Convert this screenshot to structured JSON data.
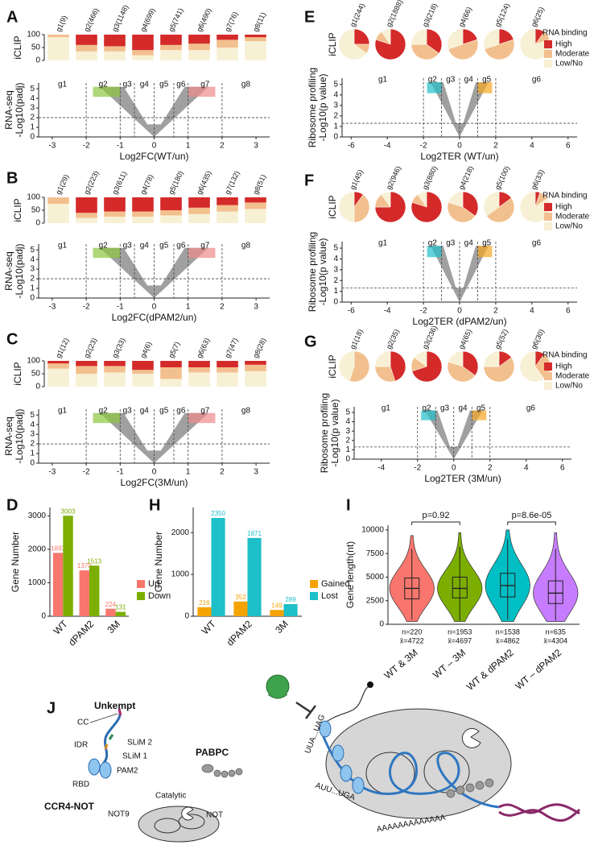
{
  "chart_data": [
    {
      "type": "stacked-bar",
      "panel": "A",
      "ylabel": "iCLIP",
      "categories": [
        "g1(9)",
        "g2(466)",
        "g3(1148)",
        "g4(699)",
        "g5(741)",
        "g6(490)",
        "g7(76)",
        "g8(11)"
      ],
      "series": [
        {
          "color": "#f7f0d4",
          "values": [
            90,
            35,
            35,
            20,
            40,
            40,
            50,
            75
          ]
        },
        {
          "color": "#f2c08e",
          "values": [
            10,
            25,
            20,
            20,
            20,
            25,
            30,
            15
          ]
        },
        {
          "color": "#d42a2a",
          "values": [
            0,
            40,
            45,
            60,
            40,
            35,
            20,
            10
          ]
        }
      ],
      "ylim": [
        0,
        100
      ],
      "yticks": [
        0,
        50,
        100
      ]
    },
    {
      "type": "volcano",
      "xlabel": "Log2FC(WT/un)",
      "ylabel": [
        "RNA-seq",
        "-Log10(padj)"
      ],
      "xlim": [
        -3.4,
        3.4
      ],
      "ylim": [
        0,
        5.6
      ],
      "xticks": [
        -3,
        -2,
        -1,
        0,
        1,
        2,
        3
      ],
      "yticks": [
        0,
        1,
        2,
        3,
        4,
        5
      ],
      "groups": [
        "g1",
        "g2",
        "g3",
        "g4",
        "g5",
        "g6",
        "g7",
        "g8"
      ],
      "x_thresholds": [
        -2,
        -1,
        -0.58,
        0,
        0.58,
        1,
        2
      ],
      "y_threshold": 2,
      "colors": [
        "#8cc63f",
        "#f08a8a"
      ]
    },
    {
      "type": "stacked-bar",
      "panel": "B",
      "ylabel": "iCLIP",
      "categories": [
        "g1(29)",
        "g2(223)",
        "g3(611)",
        "g4(78)",
        "g5(180)",
        "g6(435)",
        "g7(132)",
        "g8(51)"
      ],
      "series": [
        {
          "color": "#f7f0d4",
          "values": [
            75,
            20,
            25,
            25,
            30,
            35,
            45,
            55
          ]
        },
        {
          "color": "#f2c08e",
          "values": [
            25,
            20,
            20,
            20,
            20,
            25,
            25,
            25
          ]
        },
        {
          "color": "#d42a2a",
          "values": [
            0,
            60,
            55,
            55,
            50,
            40,
            30,
            20
          ]
        }
      ],
      "ylim": [
        0,
        100
      ],
      "yticks": [
        0,
        50,
        100
      ]
    },
    {
      "type": "volcano",
      "xlabel": "Log2FC(dPAM2/un)",
      "ylabel": [
        "RNA-seq",
        "-Log10(padj)"
      ],
      "xlim": [
        -3.4,
        3.4
      ],
      "ylim": [
        0,
        5.6
      ],
      "xticks": [
        -3,
        -2,
        -1,
        0,
        1,
        2,
        3
      ],
      "yticks": [
        0,
        1,
        2,
        3,
        4,
        5
      ],
      "groups": [
        "g1",
        "g2",
        "g3",
        "g4",
        "g5",
        "g6",
        "g7",
        "g8"
      ],
      "x_thresholds": [
        -2,
        -1,
        -0.58,
        0,
        0.58,
        1,
        2
      ],
      "y_threshold": 2,
      "colors": [
        "#8cc63f",
        "#f08a8a"
      ]
    },
    {
      "type": "stacked-bar",
      "panel": "C",
      "ylabel": "iCLIP",
      "categories": [
        "g1(12)",
        "g2(23)",
        "g3(33)",
        "g4(6)",
        "g5(7)",
        "g6(63)",
        "g7(47)",
        "g8(28)"
      ],
      "series": [
        {
          "color": "#f7f0d4",
          "values": [
            70,
            50,
            55,
            50,
            30,
            55,
            55,
            60
          ]
        },
        {
          "color": "#f2c08e",
          "values": [
            20,
            30,
            25,
            15,
            45,
            20,
            20,
            25
          ]
        },
        {
          "color": "#d42a2a",
          "values": [
            10,
            20,
            20,
            35,
            25,
            25,
            25,
            15
          ]
        }
      ],
      "ylim": [
        0,
        100
      ],
      "yticks": [
        0,
        50,
        100
      ]
    },
    {
      "type": "volcano",
      "xlabel": "Log2FC(3M/un)",
      "ylabel": [
        "RNA-seq",
        "-Log10(padj)"
      ],
      "xlim": [
        -3.4,
        3.4
      ],
      "ylim": [
        0,
        5.6
      ],
      "xticks": [
        -3,
        -2,
        -1,
        0,
        1,
        2,
        3
      ],
      "yticks": [
        0,
        1,
        2,
        3,
        4,
        5
      ],
      "groups": [
        "g1",
        "g2",
        "g3",
        "g4",
        "g5",
        "g6",
        "g7",
        "g8"
      ],
      "x_thresholds": [
        -2,
        -1,
        -0.58,
        0,
        0.58,
        1,
        2
      ],
      "y_threshold": 2,
      "colors": [
        "#8cc63f",
        "#f08a8a"
      ]
    },
    {
      "type": "pie",
      "panel": "E",
      "ylabel": "iCLIP",
      "legend_title": "RNA binding",
      "categories": [
        "g1(244)",
        "g2(1888)",
        "g3(218)",
        "g4(66)",
        "g5(124)",
        "g6(25)"
      ],
      "series": [
        {
          "name": "High",
          "color": "#d42a2a",
          "values": [
            25,
            80,
            35,
            20,
            20,
            10
          ]
        },
        {
          "name": "Moderate",
          "color": "#f2c08e",
          "values": [
            10,
            10,
            40,
            50,
            50,
            10
          ]
        },
        {
          "name": "Low/No",
          "color": "#f7f0d4",
          "values": [
            65,
            10,
            25,
            30,
            30,
            80
          ]
        }
      ]
    },
    {
      "type": "volcano",
      "xlabel": "Log2TER (WT/un)",
      "ylabel": [
        "Ribosome profiling",
        "-Log10(p value)"
      ],
      "xlim": [
        -6.5,
        6.5
      ],
      "ylim": [
        0,
        5.6
      ],
      "xticks": [
        -6,
        -4,
        -2,
        0,
        2,
        4,
        6
      ],
      "yticks": [
        0,
        1,
        2,
        3,
        4,
        5
      ],
      "groups": [
        "g1",
        "g2",
        "g3",
        "g4",
        "g5",
        "g6"
      ],
      "x_thresholds": [
        -2,
        -1,
        0,
        1,
        2
      ],
      "y_threshold": 1.3,
      "colors": [
        "#1fbfc7",
        "#f5a623"
      ]
    },
    {
      "type": "pie",
      "panel": "F",
      "ylabel": "iCLIP",
      "legend_title": "RNA binding",
      "categories": [
        "g1(45)",
        "g2(946)",
        "g3(880)",
        "g4(218)",
        "g5(100)",
        "g6(33)"
      ],
      "series": [
        {
          "name": "High",
          "color": "#d42a2a",
          "values": [
            10,
            75,
            80,
            35,
            15,
            5
          ]
        },
        {
          "name": "Moderate",
          "color": "#f2c08e",
          "values": [
            40,
            15,
            10,
            45,
            50,
            10
          ]
        },
        {
          "name": "Low/No",
          "color": "#f7f0d4",
          "values": [
            50,
            10,
            10,
            20,
            35,
            85
          ]
        }
      ]
    },
    {
      "type": "volcano",
      "xlabel": "Log2TER (dPAM2/un)",
      "ylabel": [
        "Ribosome profiling",
        "-Log10(p value)"
      ],
      "xlim": [
        -6.5,
        6.5
      ],
      "ylim": [
        0,
        5.6
      ],
      "xticks": [
        -6,
        -4,
        -2,
        0,
        2,
        4,
        6
      ],
      "yticks": [
        0,
        1,
        2,
        3,
        4,
        5
      ],
      "groups": [
        "g1",
        "g2",
        "g3",
        "g4",
        "g5",
        "g6"
      ],
      "x_thresholds": [
        -2,
        -1,
        0,
        1,
        2
      ],
      "y_threshold": 1.3,
      "colors": [
        "#1fbfc7",
        "#f5a623"
      ]
    },
    {
      "type": "pie",
      "panel": "G",
      "ylabel": "iCLIP",
      "legend_title": "RNA binding",
      "categories": [
        "g1(18)",
        "g2(35)",
        "g3(236)",
        "g4(65)",
        "g5(52)",
        "g6(30)"
      ],
      "series": [
        {
          "name": "High",
          "color": "#d42a2a",
          "values": [
            0,
            45,
            70,
            35,
            15,
            10
          ]
        },
        {
          "name": "Moderate",
          "color": "#f2c08e",
          "values": [
            55,
            30,
            15,
            45,
            60,
            30
          ]
        },
        {
          "name": "Low/No",
          "color": "#f7f0d4",
          "values": [
            45,
            25,
            15,
            20,
            25,
            60
          ]
        }
      ]
    },
    {
      "type": "volcano",
      "xlabel": "Log2TER (3M/un)",
      "ylabel": [
        "Ribosome profiling",
        "-Log10(p value)"
      ],
      "xlim": [
        -5.5,
        6.5
      ],
      "ylim": [
        0,
        5.6
      ],
      "xticks": [
        -4,
        -2,
        0,
        2,
        4,
        6
      ],
      "yticks": [
        0,
        1,
        2,
        3,
        4,
        5
      ],
      "groups": [
        "g1",
        "g2",
        "g3",
        "g4",
        "g5",
        "g6"
      ],
      "x_thresholds": [
        -2,
        -1,
        0,
        1,
        2
      ],
      "y_threshold": 1.3,
      "colors": [
        "#1fbfc7",
        "#f5a623"
      ]
    },
    {
      "type": "bar",
      "panel": "D",
      "ylabel": "Gene Number",
      "categories": [
        "WT",
        "dPAM2",
        "3M"
      ],
      "series": [
        {
          "name": "Up",
          "color": "#f8766d",
          "values": [
            1893,
            1370,
            224
          ]
        },
        {
          "name": "Down",
          "color": "#7cae00",
          "values": [
            3003,
            1513,
            131
          ]
        }
      ],
      "ylim": [
        0,
        3250
      ],
      "yticks": [
        0,
        1000,
        2000,
        3000
      ]
    },
    {
      "type": "bar",
      "panel": "H",
      "ylabel": "Gene Number",
      "categories": [
        "WT",
        "dPAM2",
        "3M"
      ],
      "series": [
        {
          "name": "Gained",
          "color": "#f5a300",
          "values": [
            216,
            352,
            149
          ]
        },
        {
          "name": "Lost",
          "color": "#1dbfc8",
          "values": [
            2350,
            1871,
            289
          ]
        }
      ],
      "ylim": [
        0,
        2600
      ],
      "yticks": [
        0,
        1000,
        2000
      ]
    },
    {
      "type": "violin",
      "panel": "I",
      "ylabel": "Gene length(nt)",
      "categories": [
        "WT & 3M",
        "WT – 3M",
        "WT & dPAM2",
        "WT – dPAM2"
      ],
      "colors": [
        "#f8766d",
        "#7cae00",
        "#00bfc4",
        "#c77cff"
      ],
      "stats": [
        {
          "min": 300,
          "low": 500,
          "q1": 2700,
          "median": 3800,
          "q3": 4900,
          "high": 8000,
          "max": 9400
        },
        {
          "min": 300,
          "low": 400,
          "q1": 2800,
          "median": 3800,
          "q3": 5000,
          "high": 8200,
          "max": 9700
        },
        {
          "min": 300,
          "low": 500,
          "q1": 2900,
          "median": 4100,
          "q3": 5400,
          "high": 9000,
          "max": 10000
        },
        {
          "min": 300,
          "low": 400,
          "q1": 2200,
          "median": 3300,
          "q3": 4600,
          "high": 8000,
          "max": 9700
        }
      ],
      "n_labels": [
        "n=220",
        "n=1953",
        "n=1538",
        "n=635"
      ],
      "mean_labels": [
        "x̄=4722",
        "x̄=4697",
        "x̄=4862",
        "x̄=4304"
      ],
      "comparisons": [
        "p=0.92",
        "p=8.6e-05"
      ],
      "ylim": [
        0,
        10500
      ],
      "yticks": [
        0,
        2500,
        5000,
        7500,
        10000
      ]
    }
  ],
  "diagram": {
    "panel": "J",
    "unkempt": "Unkempt",
    "cc": "CC",
    "idr": "IDR",
    "slim2": "SLiM 2",
    "slim1": "SLiM 1",
    "pam2": "PAM2",
    "rbd": "RBD",
    "pabpc": "PABPC",
    "ccr4not": "CCR4-NOT",
    "catalytic": "Catalytic",
    "not9": "NOT9",
    "not": "NOT",
    "start_codon": "UUA...UAG",
    "stop_codon": "AUU...UGA",
    "polya": "AAAAAAAAAAAAA"
  }
}
